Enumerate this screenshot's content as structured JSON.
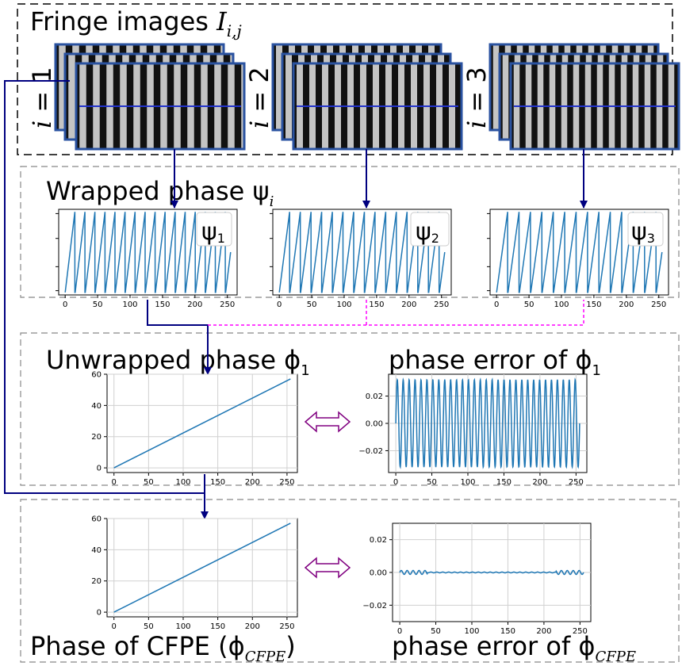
{
  "title": {
    "fringe_text": "Fringe images ",
    "fringe_var": "I",
    "fringe_sub": "i,j",
    "wrapped_text": "Wrapped phase ψ",
    "wrapped_sub": "i",
    "unwrapped_text": "Unwrapped phase ϕ",
    "unwrapped_sub": "1",
    "error1_text": "phase error of ϕ",
    "error1_sub": "1",
    "cfpe_text": "Phase of CFPE (ϕ",
    "cfpe_sub": "CFPE",
    "cfpe_close": ")",
    "error2_text": "phase error of ϕ",
    "error2_sub": "CFPE"
  },
  "fringe_groups": [
    {
      "label_var": "i",
      "label_rest": " = 1"
    },
    {
      "label_var": "i",
      "label_rest": " = 2"
    },
    {
      "label_var": "i",
      "label_rest": " = 3"
    }
  ],
  "psi_legends": [
    {
      "symbol": "ψ",
      "sub": "1"
    },
    {
      "symbol": "ψ",
      "sub": "2"
    },
    {
      "symbol": "ψ",
      "sub": "3"
    }
  ],
  "colors": {
    "series": "#1f77b4",
    "arrow": "#000080",
    "dashed_magenta": "#ff00ff",
    "double_arrow": "#800080",
    "fringe_border": "#2a52a0",
    "dash_box": "#000000",
    "dash_box_light": "#888888"
  },
  "chart_data": [
    {
      "type": "line",
      "name": "wrapped-1",
      "x_ticks": [
        0,
        50,
        100,
        150,
        200,
        250
      ],
      "xlim": [
        -10,
        265
      ],
      "ylim": [
        0,
        1
      ],
      "sawtooth": {
        "periods": 17,
        "x_range": [
          0,
          255
        ]
      }
    },
    {
      "type": "line",
      "name": "wrapped-2",
      "x_ticks": [
        0,
        50,
        100,
        150,
        200,
        250
      ],
      "xlim": [
        -10,
        265
      ],
      "ylim": [
        0,
        1
      ],
      "sawtooth": {
        "periods": 16,
        "x_range": [
          0,
          255
        ]
      }
    },
    {
      "type": "line",
      "name": "wrapped-3",
      "x_ticks": [
        0,
        50,
        100,
        150,
        200,
        250
      ],
      "xlim": [
        -10,
        265
      ],
      "ylim": [
        0,
        1
      ],
      "sawtooth": {
        "periods": 15,
        "x_range": [
          0,
          255
        ]
      }
    },
    {
      "type": "line",
      "name": "unwrapped-phase",
      "x": [
        0,
        255
      ],
      "y": [
        0,
        57
      ],
      "x_ticks": [
        0,
        50,
        100,
        150,
        200,
        250
      ],
      "y_ticks": [
        0,
        20,
        40,
        60
      ],
      "xlim": [
        -10,
        265
      ],
      "ylim": [
        -3,
        60
      ],
      "grid": true
    },
    {
      "type": "line",
      "name": "phase-error-1",
      "x_ticks": [
        0,
        50,
        100,
        150,
        200,
        250
      ],
      "y_ticks": [
        -0.02,
        0.0,
        0.02
      ],
      "y_tick_labels": [
        "−0.02",
        "0.00",
        "0.02"
      ],
      "xlim": [
        -10,
        265
      ],
      "ylim": [
        -0.036,
        0.036
      ],
      "grid": true,
      "oscillation": {
        "amplitude": 0.032,
        "cycles": 31,
        "x_range": [
          0,
          255
        ]
      }
    },
    {
      "type": "line",
      "name": "cfpe-phase",
      "x": [
        0,
        255
      ],
      "y": [
        0,
        57
      ],
      "x_ticks": [
        0,
        50,
        100,
        150,
        200,
        250
      ],
      "y_ticks": [
        0,
        20,
        40,
        60
      ],
      "xlim": [
        -10,
        265
      ],
      "ylim": [
        -3,
        60
      ],
      "grid": true
    },
    {
      "type": "line",
      "name": "phase-error-cfpe",
      "x_ticks": [
        0,
        50,
        100,
        150,
        200,
        250
      ],
      "y_ticks": [
        -0.02,
        0.0,
        0.02
      ],
      "y_tick_labels": [
        "−0.02",
        "0.00",
        "0.02"
      ],
      "xlim": [
        -10,
        265
      ],
      "ylim": [
        -0.03,
        0.03
      ],
      "grid": true,
      "oscillation": {
        "amplitude": 0.0012,
        "cycles": 31,
        "x_range": [
          0,
          255
        ]
      }
    }
  ]
}
